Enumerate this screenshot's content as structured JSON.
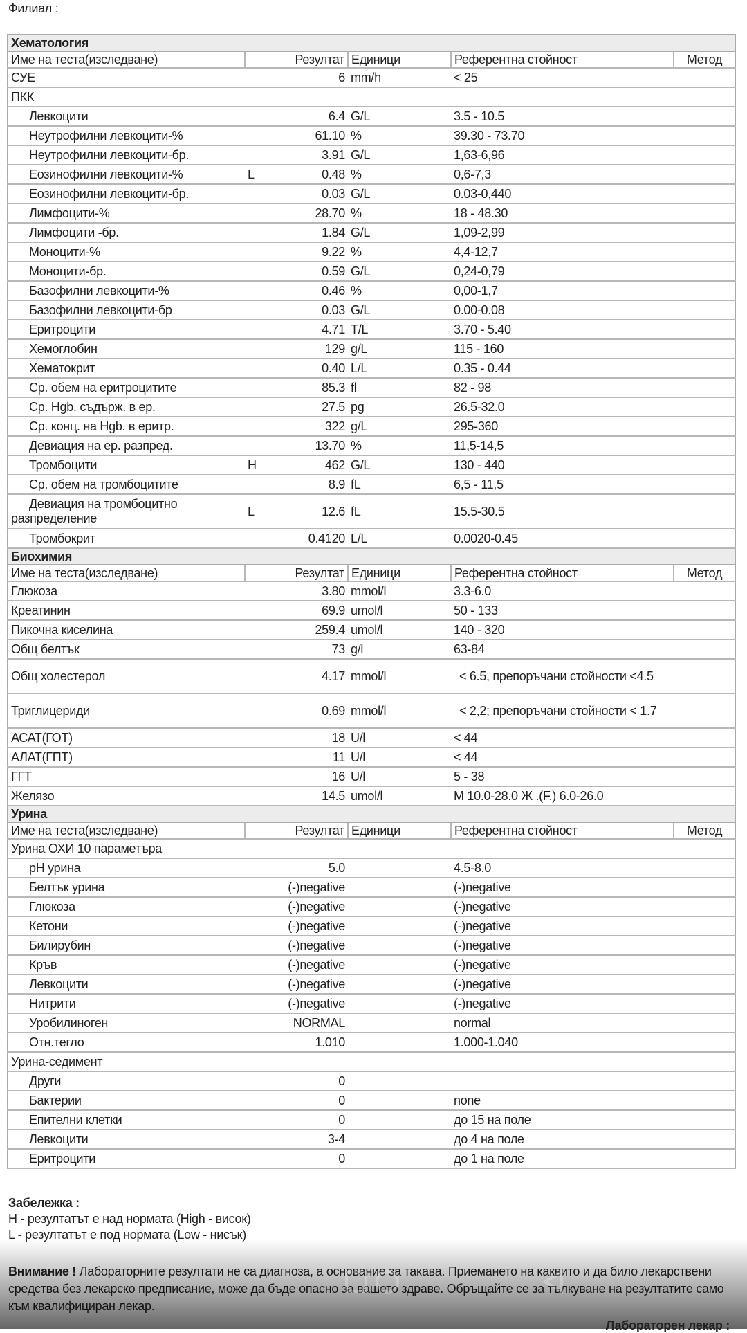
{
  "branch_label": "Филиал :",
  "columns": {
    "name": "Име на теста(изследване)",
    "result": "Резултат",
    "units": "Единици",
    "reference": "Референтна стойност",
    "method": "Метод"
  },
  "sections": [
    {
      "title": "Хематология",
      "rows": [
        {
          "name": "СУЕ",
          "flag": "",
          "result": "6",
          "units": "mm/h",
          "ref": "< 25"
        },
        {
          "name": "ПКК",
          "group": true
        },
        {
          "name": "Левкоцити",
          "indent": true,
          "flag": "",
          "result": "6.4",
          "units": "G/L",
          "ref": "3.5 - 10.5"
        },
        {
          "name": "Неутрофилни левкоцити-%",
          "indent": true,
          "flag": "",
          "result": "61.10",
          "units": "%",
          "ref": "39.30 - 73.70"
        },
        {
          "name": "Неутрофилни левкоцити-бр.",
          "indent": true,
          "flag": "",
          "result": "3.91",
          "units": "G/L",
          "ref": "1,63-6,96"
        },
        {
          "name": "Еозинофилни левкоцити-%",
          "indent": true,
          "flag": "L",
          "result": "0.48",
          "units": "%",
          "ref": "0,6-7,3"
        },
        {
          "name": "Еозинофилни левкоцити-бр.",
          "indent": true,
          "flag": "",
          "result": "0.03",
          "units": "G/L",
          "ref": "0.03-0,440"
        },
        {
          "name": "Лимфоцити-%",
          "indent": true,
          "flag": "",
          "result": "28.70",
          "units": "%",
          "ref": "18 - 48.30"
        },
        {
          "name": "Лимфоцити -бр.",
          "indent": true,
          "flag": "",
          "result": "1.84",
          "units": "G/L",
          "ref": "1,09-2,99"
        },
        {
          "name": "Моноцити-%",
          "indent": true,
          "flag": "",
          "result": "9.22",
          "units": "%",
          "ref": "4,4-12,7"
        },
        {
          "name": "Моноцити-бр.",
          "indent": true,
          "flag": "",
          "result": "0.59",
          "units": "G/L",
          "ref": "0,24-0,79"
        },
        {
          "name": "Базофилни левкоцити-%",
          "indent": true,
          "flag": "",
          "result": "0.46",
          "units": "%",
          "ref": "0,00-1,7"
        },
        {
          "name": "Базофилни левкоцити-бр",
          "indent": true,
          "flag": "",
          "result": "0.03",
          "units": "G/L",
          "ref": "0.00-0.08"
        },
        {
          "name": "Еритроцити",
          "indent": true,
          "flag": "",
          "result": "4.71",
          "units": "T/L",
          "ref": "3.70 - 5.40"
        },
        {
          "name": "Хемоглобин",
          "indent": true,
          "flag": "",
          "result": "129",
          "units": "g/L",
          "ref": "115 - 160"
        },
        {
          "name": "Хематокрит",
          "indent": true,
          "flag": "",
          "result": "0.40",
          "units": "L/L",
          "ref": "0.35 - 0.44"
        },
        {
          "name": "Ср. обем на еритроцитите",
          "indent": true,
          "flag": "",
          "result": "85.3",
          "units": "fl",
          "ref": "82 - 98"
        },
        {
          "name": "Ср. Hgb. съдърж. в ер.",
          "indent": true,
          "flag": "",
          "result": "27.5",
          "units": "pg",
          "ref": "26.5-32.0"
        },
        {
          "name": "Ср. конц. на Hgb. в еритр.",
          "indent": true,
          "flag": "",
          "result": "322",
          "units": "g/L",
          "ref": "295-360"
        },
        {
          "name": "Девиация на ер. разпред.",
          "indent": true,
          "flag": "",
          "result": "13.70",
          "units": "%",
          "ref": "11,5-14,5"
        },
        {
          "name": "Тромбоцити",
          "indent": true,
          "flag": "H",
          "result": "462",
          "units": "G/L",
          "ref": "130 - 440"
        },
        {
          "name": "Ср. обем на тромбоцитите",
          "indent": true,
          "flag": "",
          "result": "8.9",
          "units": "fL",
          "ref": "6,5 - 11,5"
        },
        {
          "name": "Девиация на тромбоцитно разпределение",
          "wrapindent": true,
          "tall": true,
          "flag": "L",
          "result": "12.6",
          "units": "fL",
          "ref": "15.5-30.5"
        },
        {
          "name": "Тромбокрит",
          "indent": true,
          "flag": "",
          "result": "0.4120",
          "units": "L/L",
          "ref": "0.0020-0.45"
        }
      ]
    },
    {
      "title": "Биохимия",
      "rows": [
        {
          "name": "Глюкоза",
          "flag": "",
          "result": "3.80",
          "units": "mmol/l",
          "ref": "3.3-6.0"
        },
        {
          "name": "Креатинин",
          "flag": "",
          "result": "69.9",
          "units": "umol/l",
          "ref": "50 - 133"
        },
        {
          "name": "Пикочна киселина",
          "flag": "",
          "result": "259.4",
          "units": "umol/l",
          "ref": "140 - 320"
        },
        {
          "name": "Общ белтък",
          "flag": "",
          "result": "73",
          "units": "g/l",
          "ref": "63-84"
        },
        {
          "name": "Общ холестерол",
          "tall": true,
          "flag": "",
          "result": "4.17",
          "units": "mmol/l",
          "ref": "< 6.5, препоръчани стойности <4.5",
          "refindent": true
        },
        {
          "name": "Триглицериди",
          "tall": true,
          "flag": "",
          "result": "0.69",
          "units": "mmol/l",
          "ref": " < 2,2; препоръчани стойности < 1.7",
          "refindent": true
        },
        {
          "name": "АСАТ(ГОТ)",
          "flag": "",
          "result": "18",
          "units": "U/l",
          "ref": "< 44"
        },
        {
          "name": "АЛАТ(ГПТ)",
          "flag": "",
          "result": "11",
          "units": "U/l",
          "ref": "< 44"
        },
        {
          "name": "ГГТ",
          "flag": "",
          "result": "16",
          "units": "U/l",
          "ref": "5 - 38"
        },
        {
          "name": "Желязо",
          "flag": "",
          "result": "14.5",
          "units": "umol/l",
          "ref": "М 10.0-28.0 Ж .(F.) 6.0-26.0"
        }
      ]
    },
    {
      "title": "Урина",
      "rows": [
        {
          "name": "Урина ОХИ 10 параметъра",
          "group": true
        },
        {
          "name": "pH урина",
          "indent": true,
          "flag": "",
          "result": "5.0",
          "units": "",
          "ref": "4.5-8.0"
        },
        {
          "name": "Белтък урина",
          "indent": true,
          "flag": "",
          "result": "(-)negative",
          "units": "",
          "ref": "(-)negative"
        },
        {
          "name": "Глюкоза",
          "indent": true,
          "flag": "",
          "result": "(-)negative",
          "units": "",
          "ref": "(-)negative"
        },
        {
          "name": "Кетони",
          "indent": true,
          "flag": "",
          "result": "(-)negative",
          "units": "",
          "ref": "(-)negative"
        },
        {
          "name": "Билирубин",
          "indent": true,
          "flag": "",
          "result": "(-)negative",
          "units": "",
          "ref": "(-)negative"
        },
        {
          "name": "Кръв",
          "indent": true,
          "flag": "",
          "result": "(-)negative",
          "units": "",
          "ref": "(-)negative"
        },
        {
          "name": "Левкоцити",
          "indent": true,
          "flag": "",
          "result": "(-)negative",
          "units": "",
          "ref": "(-)negative"
        },
        {
          "name": "Нитрити",
          "indent": true,
          "flag": "",
          "result": "(-)negative",
          "units": "",
          "ref": "(-)negative"
        },
        {
          "name": "Уробилиноген",
          "indent": true,
          "flag": "",
          "result": "NORMAL",
          "units": "",
          "ref": "normal"
        },
        {
          "name": "Отн.тегло",
          "indent": true,
          "flag": "",
          "result": "1.010",
          "units": "",
          "ref": "1.000-1.040"
        },
        {
          "name": "Урина-седимент",
          "group": true
        },
        {
          "name": "Други",
          "indent": true,
          "flag": "",
          "result": "0",
          "units": "",
          "ref": ""
        },
        {
          "name": "Бактерии",
          "indent": true,
          "flag": "",
          "result": "0",
          "units": "",
          "ref": "none"
        },
        {
          "name": "Епителни клетки",
          "indent": true,
          "flag": "",
          "result": "0",
          "units": "",
          "ref": "до 15 на поле"
        },
        {
          "name": "Левкоцити",
          "indent": true,
          "flag": "",
          "result": "3-4",
          "units": "",
          "ref": "до 4 на поле"
        },
        {
          "name": "Еритроцити",
          "indent": true,
          "flag": "",
          "result": "0",
          "units": "",
          "ref": "до 1 на поле"
        }
      ]
    }
  ],
  "notes": {
    "title": "Забележка :",
    "high": "H - резултатът е над нормата (High - висок)",
    "low": "L - резултатът е под нормата (Low - нисък)"
  },
  "warning": {
    "label": "Внимание !",
    "text": " Лабораторните резултати не са диагноза, а основание за такава. Приемането на каквито и да било лекарствени средства без лекарско предписание, може да бъде опасно за вашето здраве. Обръщайте се за тълкуване на резултатите само към квалифициран лекар."
  },
  "doctor_label": "Лабораторен лекар :",
  "nav_icons": [
    "recent-apps-icon",
    "home-icon",
    "back-icon"
  ]
}
